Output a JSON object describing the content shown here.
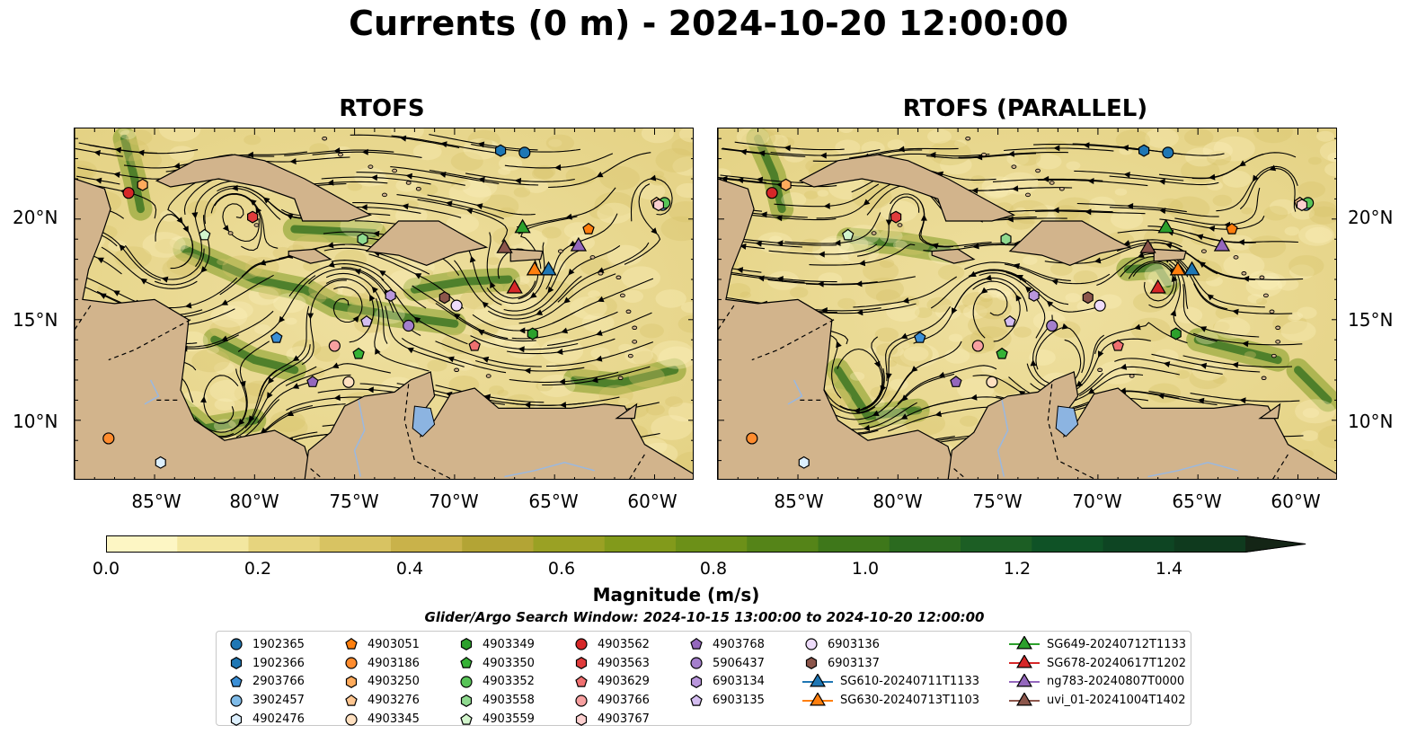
{
  "title": "Currents (0 m) - 2024-10-20 12:00:00",
  "panels": [
    {
      "title": "RTOFS"
    },
    {
      "title": "RTOFS (PARALLEL)"
    }
  ],
  "axes": {
    "lat_ticks": [
      "20°N",
      "15°N",
      "10°N"
    ],
    "lon_ticks": [
      "85°W",
      "80°W",
      "75°W",
      "70°W",
      "65°W",
      "60°W"
    ]
  },
  "colorbar": {
    "label": "Magnitude (m/s)",
    "ticks": [
      "0.0",
      "0.2",
      "0.4",
      "0.6",
      "0.8",
      "1.0",
      "1.2",
      "1.4"
    ],
    "colors": [
      "#fdf6c4",
      "#f3e7a0",
      "#e6d47e",
      "#d8c362",
      "#c9b24a",
      "#b3a435",
      "#9aa124",
      "#829a1b",
      "#6c9018",
      "#558418",
      "#3e771a",
      "#2b6a1f",
      "#1c5e24",
      "#0f5226",
      "#0e4523",
      "#0f3a1e",
      "#10301a",
      "#142516"
    ],
    "range": [
      0,
      1.5
    ],
    "extend": "max"
  },
  "search_window": "Glider/Argo Search Window: 2024-10-15 13:00:00 to 2024-10-20 12:00:00",
  "colors": {
    "land": "#d2b48c",
    "lake": "#8cb4e1",
    "river": "#9ab8e0"
  },
  "legend": [
    {
      "label": "1902365",
      "marker": "circle",
      "color": "#1f77b4"
    },
    {
      "label": "1902366",
      "marker": "hexagon",
      "color": "#1f77b4"
    },
    {
      "label": "2903766",
      "marker": "pentagon",
      "color": "#3b8fd6"
    },
    {
      "label": "3902457",
      "marker": "circle",
      "color": "#7fbbe8"
    },
    {
      "label": "4902476",
      "marker": "hexagon",
      "color": "#dceffd"
    },
    {
      "label": "4903051",
      "marker": "pentagon",
      "color": "#ff7f0e"
    },
    {
      "label": "4903186",
      "marker": "circle",
      "color": "#ff8c2e"
    },
    {
      "label": "4903250",
      "marker": "hexagon",
      "color": "#ffab5c"
    },
    {
      "label": "4903276",
      "marker": "pentagon",
      "color": "#ffc690"
    },
    {
      "label": "4903345",
      "marker": "circle",
      "color": "#ffe0c0"
    },
    {
      "label": "4903349",
      "marker": "hexagon",
      "color": "#2ca02c"
    },
    {
      "label": "4903350",
      "marker": "pentagon",
      "color": "#36b236"
    },
    {
      "label": "4903352",
      "marker": "circle",
      "color": "#58c458"
    },
    {
      "label": "4903558",
      "marker": "hexagon",
      "color": "#8fda8f"
    },
    {
      "label": "4903559",
      "marker": "pentagon",
      "color": "#d2f5cc"
    },
    {
      "label": "4903562",
      "marker": "circle",
      "color": "#d62728"
    },
    {
      "label": "4903563",
      "marker": "hexagon",
      "color": "#e03c3c"
    },
    {
      "label": "4903629",
      "marker": "pentagon",
      "color": "#f07070"
    },
    {
      "label": "4903766",
      "marker": "circle",
      "color": "#f7a0a0"
    },
    {
      "label": "4903767",
      "marker": "hexagon",
      "color": "#fcd0d0"
    },
    {
      "label": "4903768",
      "marker": "pentagon",
      "color": "#9467bd"
    },
    {
      "label": "5906437",
      "marker": "circle",
      "color": "#a47fcc"
    },
    {
      "label": "6903134",
      "marker": "hexagon",
      "color": "#b996dc"
    },
    {
      "label": "6903135",
      "marker": "pentagon",
      "color": "#d4bdf0"
    },
    {
      "label": "6903136",
      "marker": "circle",
      "color": "#eedcfb"
    },
    {
      "label": "6903137",
      "marker": "hexagon",
      "color": "#8c564b"
    },
    {
      "label": "SG610-20240711T1133",
      "marker": "triangle",
      "color": "#1f77b4"
    },
    {
      "label": "SG630-20240713T1103",
      "marker": "triangle",
      "color": "#ff7f0e"
    },
    {
      "label": "SG649-20240712T1133",
      "marker": "triangle",
      "color": "#2ca02c"
    },
    {
      "label": "SG678-20240617T1202",
      "marker": "triangle",
      "color": "#d62728"
    },
    {
      "label": "ng783-20240807T0000",
      "marker": "triangle",
      "color": "#9467bd"
    },
    {
      "label": "uvi_01-20241004T1402",
      "marker": "triangle",
      "color": "#8c564b"
    }
  ],
  "map": {
    "lon_range": [
      -89,
      -58
    ],
    "lat_range": [
      7,
      24.5
    ],
    "argo": [
      {
        "id": "1902365",
        "lon": -66.5,
        "lat": 23.3
      },
      {
        "id": "1902366",
        "lon": -67.7,
        "lat": 23.4
      },
      {
        "id": "2903766",
        "lon": -78.9,
        "lat": 14.1
      },
      {
        "id": "3902457",
        "lon": -59.6,
        "lat": 20.7
      },
      {
        "id": "4902476",
        "lon": -84.7,
        "lat": 7.9
      },
      {
        "id": "4903051",
        "lon": -63.3,
        "lat": 19.5
      },
      {
        "id": "4903186",
        "lon": -87.3,
        "lat": 9.1
      },
      {
        "id": "4903250",
        "lon": -85.6,
        "lat": 21.7
      },
      {
        "id": "4903276",
        "lon": -59.9,
        "lat": 20.8
      },
      {
        "id": "4903345",
        "lon": -75.3,
        "lat": 11.9
      },
      {
        "id": "4903349",
        "lon": -66.1,
        "lat": 14.3
      },
      {
        "id": "4903350",
        "lon": -74.8,
        "lat": 13.3
      },
      {
        "id": "4903352",
        "lon": -59.5,
        "lat": 20.8
      },
      {
        "id": "4903558",
        "lon": -74.6,
        "lat": 19.0
      },
      {
        "id": "4903559",
        "lon": -82.5,
        "lat": 19.2
      },
      {
        "id": "4903562",
        "lon": -86.3,
        "lat": 21.3
      },
      {
        "id": "4903563",
        "lon": -80.1,
        "lat": 20.1
      },
      {
        "id": "4903629",
        "lon": -69.0,
        "lat": 13.7
      },
      {
        "id": "4903766",
        "lon": -76.0,
        "lat": 13.7
      },
      {
        "id": "4903767",
        "lon": -59.8,
        "lat": 20.7
      },
      {
        "id": "4903768",
        "lon": -77.1,
        "lat": 11.9
      },
      {
        "id": "5906437",
        "lon": -72.3,
        "lat": 14.7
      },
      {
        "id": "6903134",
        "lon": -73.2,
        "lat": 16.2
      },
      {
        "id": "6903135",
        "lon": -74.4,
        "lat": 14.9
      },
      {
        "id": "6903136",
        "lon": -69.9,
        "lat": 15.7
      },
      {
        "id": "6903137",
        "lon": -70.5,
        "lat": 16.1
      }
    ],
    "gliders": [
      {
        "id": "SG610-20240711T1133",
        "lon": -65.3,
        "lat": 17.5
      },
      {
        "id": "SG630-20240713T1103",
        "lon": -66.0,
        "lat": 17.5
      },
      {
        "id": "SG649-20240712T1133",
        "lon": -66.6,
        "lat": 19.6
      },
      {
        "id": "SG678-20240617T1202",
        "lon": -67.0,
        "lat": 16.6
      },
      {
        "id": "ng783-20240807T0000",
        "lon": -63.8,
        "lat": 18.7
      },
      {
        "id": "uvi_01-20241004T1402",
        "lon": -67.5,
        "lat": 18.6
      }
    ]
  }
}
